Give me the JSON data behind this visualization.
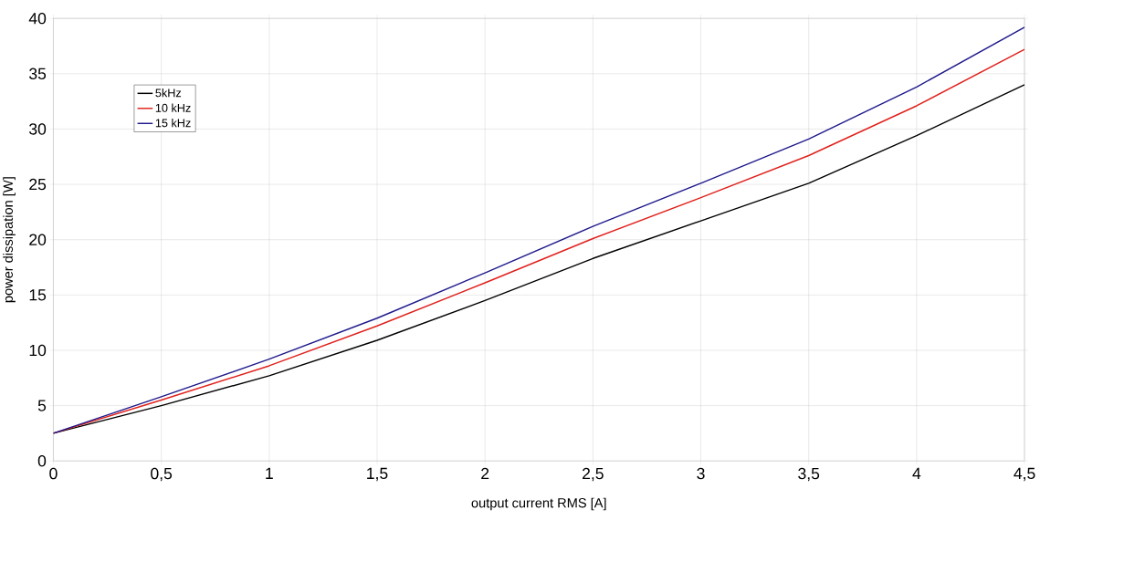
{
  "chart_data": {
    "type": "line",
    "xlabel": "output current RMS [A]",
    "ylabel": "power dissipation [W]",
    "x": [
      0,
      0.5,
      1,
      1.5,
      2,
      2.5,
      3,
      3.5,
      4,
      4.5
    ],
    "series": [
      {
        "name": "5kHz",
        "color": "#000000",
        "values": [
          2.5,
          5.0,
          7.7,
          10.9,
          14.5,
          18.3,
          21.7,
          25.1,
          29.4,
          34.0
        ]
      },
      {
        "name": "10 kHz",
        "color": "#e0211c",
        "values": [
          2.5,
          5.5,
          8.6,
          12.2,
          16.1,
          20.1,
          23.8,
          27.6,
          32.1,
          37.2
        ]
      },
      {
        "name": "15 kHz",
        "color": "#1f1a8c",
        "values": [
          2.5,
          5.8,
          9.2,
          12.9,
          17.0,
          21.2,
          25.1,
          29.1,
          33.8,
          39.2
        ]
      }
    ],
    "xlim": [
      0,
      4.5
    ],
    "ylim": [
      0,
      40
    ],
    "xticks": [
      0,
      {
        "value": 0.5,
        "label": "0,5"
      },
      1,
      {
        "value": 1.5,
        "label": "1,5"
      },
      2,
      {
        "value": 2.5,
        "label": "2,5"
      },
      3,
      {
        "value": 3.5,
        "label": "3,5"
      },
      4,
      {
        "value": 4.5,
        "label": "4,5"
      }
    ],
    "yticks": [
      0,
      5,
      10,
      15,
      20,
      25,
      30,
      35,
      40
    ],
    "grid": true,
    "legend": "top left",
    "marker": "none",
    "line_style": "solid"
  }
}
